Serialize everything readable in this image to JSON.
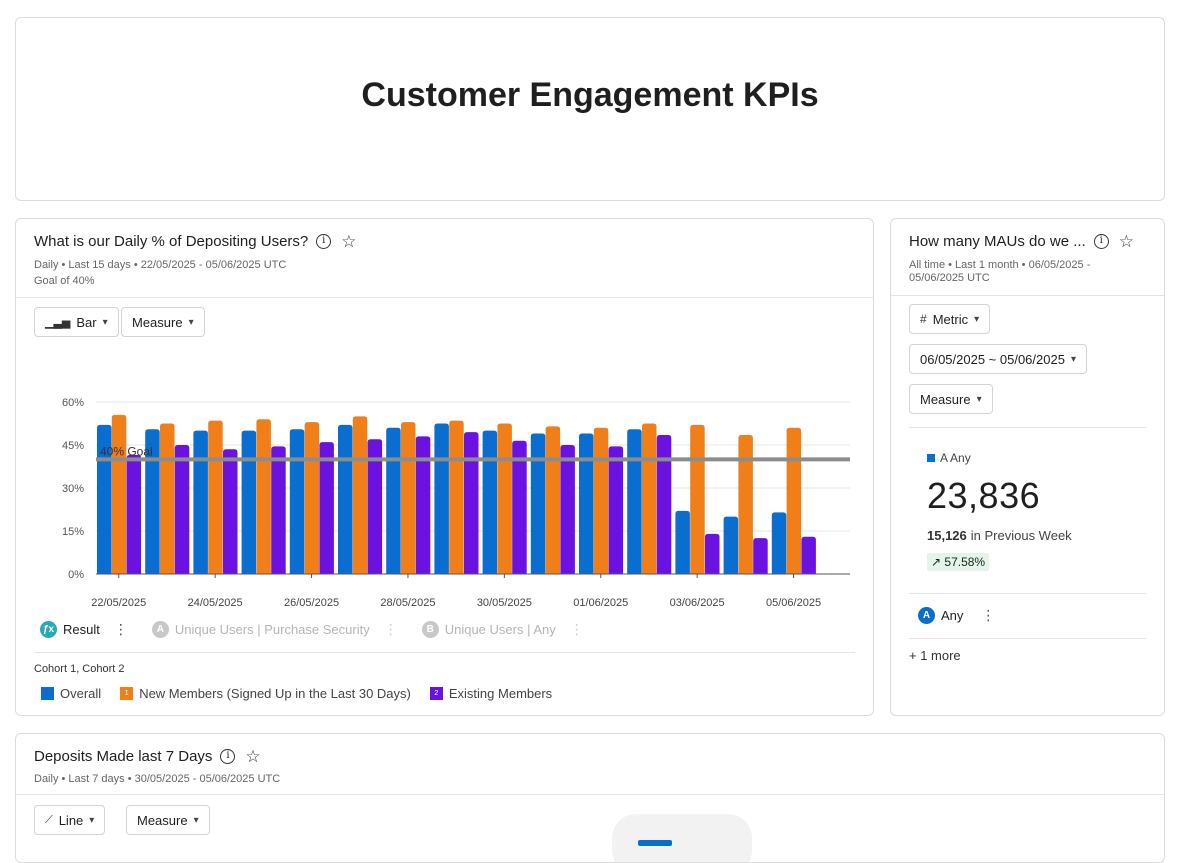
{
  "dashboard": {
    "title": "Customer Engagement KPIs"
  },
  "card1": {
    "title": "What is our Daily % of Depositing Users?",
    "meta_line1": "Daily • Last 15 days • 22/05/2025 - 05/06/2025 UTC",
    "meta_line2": "Goal of 40%",
    "chart_type_button": "Bar",
    "measure_button": "Measure",
    "goal_label": "40% Goal",
    "formula_label": "Result",
    "metric_a_letter": "A",
    "metric_a_label": "Unique Users | Purchase Security",
    "metric_b_letter": "B",
    "metric_b_label": "Unique Users | Any",
    "cohort_label": "Cohort 1, Cohort 2",
    "legend": [
      {
        "label": "Overall",
        "color": "#0a6ed1",
        "badge": ""
      },
      {
        "label": "New Members (Signed Up in the Last 30 Days)",
        "color": "#f07f1a",
        "badge": "1"
      },
      {
        "label": "Existing Members",
        "color": "#6a12e0",
        "badge": "2"
      }
    ]
  },
  "card2": {
    "title": "How many MAUs do we ...",
    "meta_line1": "All time • Last 1 month • 06/05/2025 -",
    "meta_line2": "05/06/2025 UTC",
    "chart_type_button": "Metric",
    "date_range_button": "06/05/2025 ~ 05/06/2025",
    "measure_button": "Measure",
    "series_label": "A Any",
    "value": "23,836",
    "previous_value": "15,126",
    "previous_label": "in Previous Week",
    "change": "57.58%",
    "metric_letter": "A",
    "metric_label": "Any",
    "more_label": "+ 1 more"
  },
  "card3": {
    "title": "Deposits Made last 7 Days",
    "meta_line1": "Daily • Last 7 days • 30/05/2025 - 05/06/2025 UTC",
    "chart_type_button": "Line",
    "measure_button": "Measure"
  },
  "colors": {
    "overall": "#0a6ed1",
    "new": "#f07f1a",
    "existing": "#6a12e0",
    "goal": "#8c8c8c"
  },
  "chart_data": {
    "type": "bar",
    "categories": [
      "22/05/2025",
      "23/05/2025",
      "24/05/2025",
      "25/05/2025",
      "26/05/2025",
      "27/05/2025",
      "28/05/2025",
      "29/05/2025",
      "30/05/2025",
      "31/05/2025",
      "01/06/2025",
      "02/06/2025",
      "03/06/2025",
      "04/06/2025",
      "05/06/2025"
    ],
    "x_tick_labels": [
      "22/05/2025",
      "24/05/2025",
      "26/05/2025",
      "28/05/2025",
      "30/05/2025",
      "01/06/2025",
      "03/06/2025",
      "05/06/2025"
    ],
    "series": [
      {
        "name": "Overall",
        "values": [
          52,
          50.5,
          50,
          50,
          50.5,
          52,
          51,
          52.5,
          50,
          49,
          49,
          50.5,
          22,
          20,
          21.5
        ]
      },
      {
        "name": "New Members (Signed Up in the Last 30 Days)",
        "values": [
          55.5,
          52.5,
          53.5,
          54,
          53,
          55,
          53,
          53.5,
          52.5,
          51.5,
          51,
          52.5,
          52,
          48.5,
          51
        ]
      },
      {
        "name": "Existing Members",
        "values": [
          41.5,
          45,
          43.5,
          44.5,
          46,
          47,
          48,
          49.5,
          46.5,
          45,
          44.5,
          48.5,
          14,
          12.5,
          13
        ]
      }
    ],
    "goal": 40,
    "y_ticks": [
      "0%",
      "15%",
      "30%",
      "45%",
      "60%"
    ],
    "ylim": [
      0,
      60
    ],
    "grid": true
  }
}
